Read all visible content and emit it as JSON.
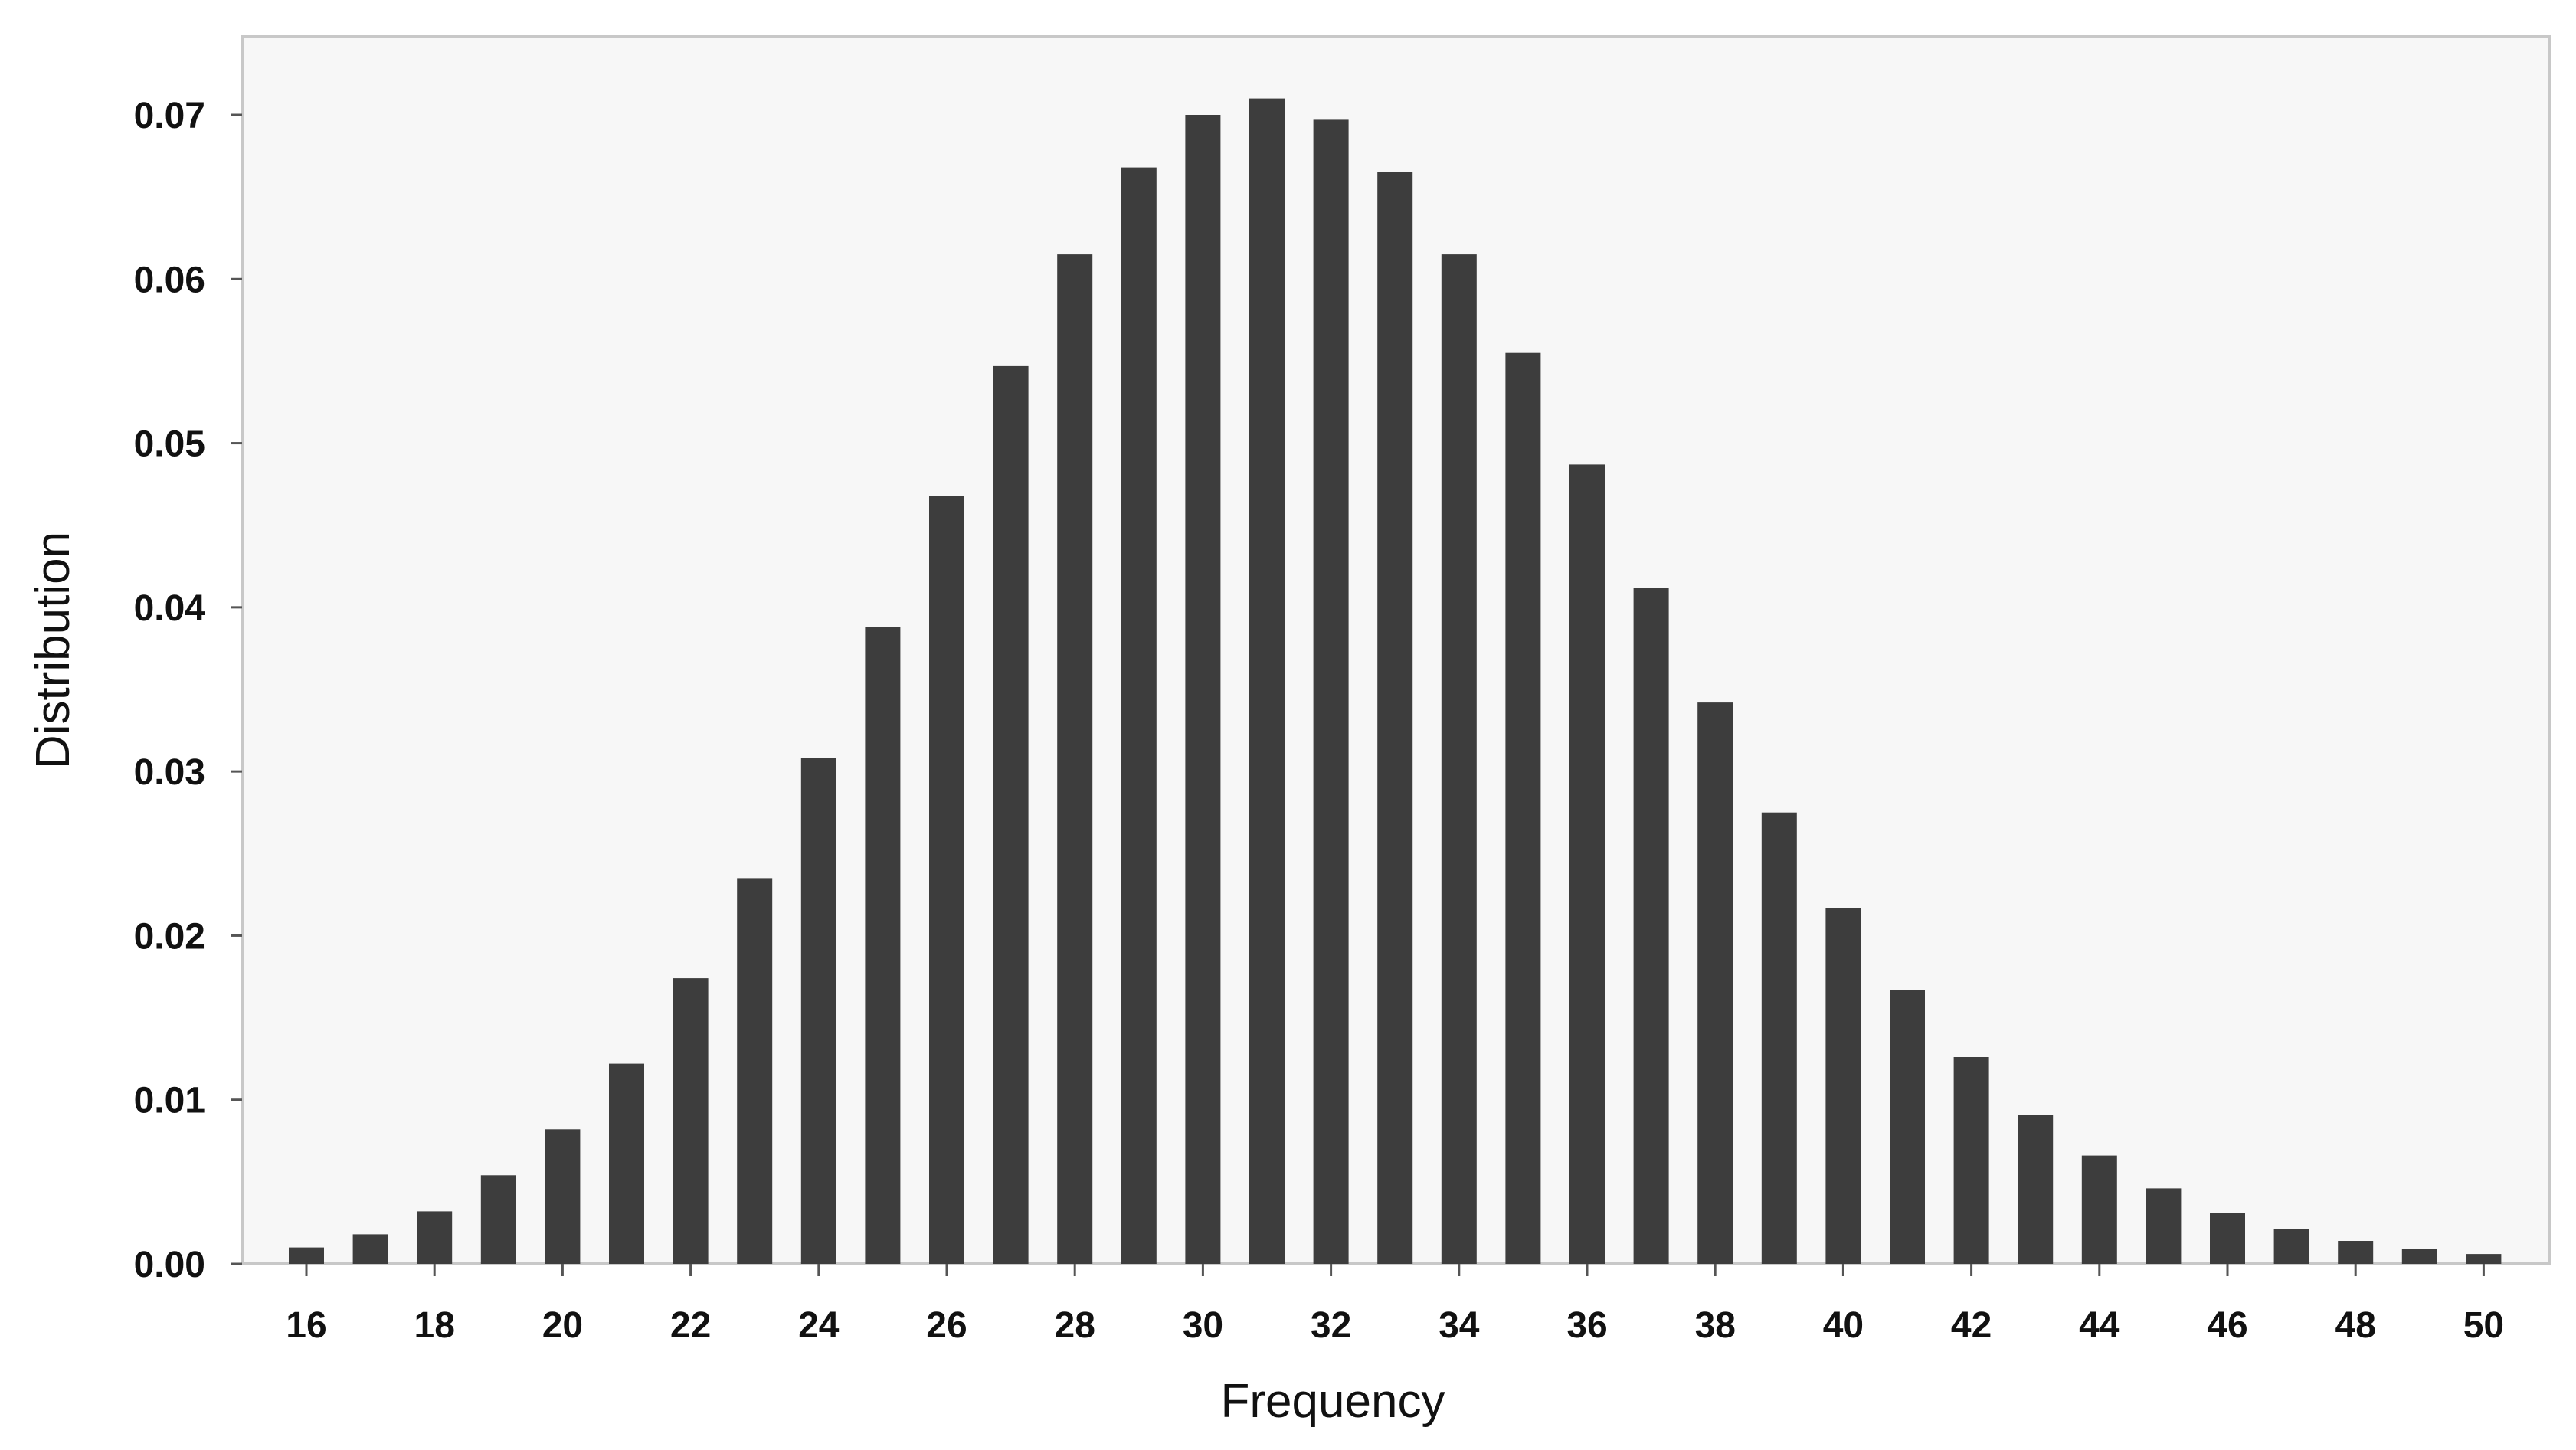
{
  "chart_data": {
    "type": "bar",
    "xlabel": "Frequency",
    "ylabel": "Distribution",
    "xlim": [
      15.5,
      50.5
    ],
    "ylim": [
      0,
      0.075
    ],
    "x_ticks": [
      16,
      18,
      20,
      22,
      24,
      26,
      28,
      30,
      32,
      34,
      36,
      38,
      40,
      42,
      44,
      46,
      48,
      50
    ],
    "y_ticks": [
      "0.00",
      "0.01",
      "0.02",
      "0.03",
      "0.04",
      "0.05",
      "0.06",
      "0.07"
    ],
    "grid": false,
    "legend": "none",
    "bar_color": "#3d3d3d",
    "plot_background": "#f7f7f7",
    "frame_color": "#c8c8c8",
    "categories": [
      16,
      17,
      18,
      19,
      20,
      21,
      22,
      23,
      24,
      25,
      26,
      27,
      28,
      29,
      30,
      31,
      32,
      33,
      34,
      35,
      36,
      37,
      38,
      39,
      40,
      41,
      42,
      43,
      44,
      45,
      46,
      47,
      48,
      49,
      50
    ],
    "values": [
      0.001,
      0.0018,
      0.0032,
      0.0054,
      0.0082,
      0.0122,
      0.0174,
      0.0235,
      0.0308,
      0.0388,
      0.0468,
      0.0547,
      0.0615,
      0.0668,
      0.07,
      0.071,
      0.0697,
      0.0665,
      0.0615,
      0.0555,
      0.0487,
      0.0412,
      0.0342,
      0.0275,
      0.0217,
      0.0167,
      0.0126,
      0.0091,
      0.0066,
      0.0046,
      0.0031,
      0.0021,
      0.0014,
      0.0009,
      0.0006
    ]
  }
}
